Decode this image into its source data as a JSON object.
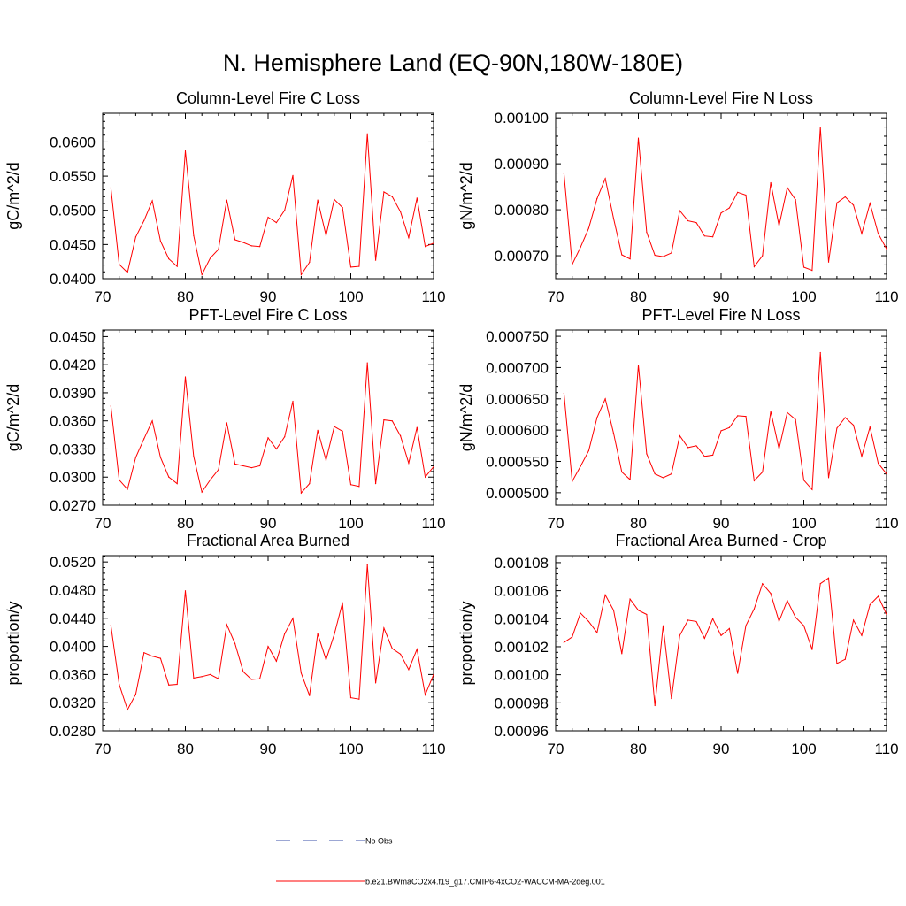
{
  "main_title": "N. Hemisphere Land (EQ-90N,180W-180E)",
  "colors": {
    "series": "#ff0000",
    "obs": "#3a4fa8",
    "axis": "#000000"
  },
  "legend": [
    {
      "label": "No Obs",
      "style": "dashed",
      "color": "#3a4fa8"
    },
    {
      "label": "b.e21.BWmaCO2x4.f19_g17.CMIP6-4xCO2-WACCM-MA-2deg.001",
      "style": "solid",
      "color": "#ff0000"
    }
  ],
  "chart_data": [
    {
      "type": "line",
      "title": "Column-Level Fire C Loss",
      "xlabel": "",
      "ylabel": "gC/m^2/d",
      "xlim": [
        70,
        110
      ],
      "ylim": [
        0.04,
        0.0642
      ],
      "xticks": [
        70,
        80,
        90,
        100,
        110
      ],
      "xtick_labels": [
        "70",
        "80",
        "90",
        "100",
        "110"
      ],
      "yticks": [
        0.04,
        0.045,
        0.05,
        0.055,
        0.06
      ],
      "ytick_labels": [
        "0.0400",
        "0.0450",
        "0.0500",
        "0.0550",
        "0.0600"
      ],
      "series": [
        {
          "name": "b.e21.BWmaCO2x4.f19_g17.CMIP6-4xCO2-WACCM-MA-2deg.001",
          "x": [
            71,
            72,
            73,
            74,
            75,
            76,
            77,
            78,
            79,
            80,
            81,
            82,
            83,
            84,
            85,
            86,
            87,
            88,
            89,
            90,
            91,
            92,
            93,
            94,
            95,
            96,
            97,
            98,
            99,
            100,
            101,
            102,
            103,
            104,
            105,
            106,
            107,
            108,
            109,
            110
          ],
          "y": [
            0.0533,
            0.0421,
            0.0409,
            0.0461,
            0.0485,
            0.0514,
            0.0455,
            0.0429,
            0.0418,
            0.0587,
            0.0463,
            0.0406,
            0.043,
            0.0443,
            0.0515,
            0.0457,
            0.0453,
            0.0448,
            0.0447,
            0.049,
            0.0482,
            0.05,
            0.0551,
            0.0406,
            0.0424,
            0.0515,
            0.0463,
            0.0516,
            0.0504,
            0.0417,
            0.0418,
            0.0612,
            0.0427,
            0.0527,
            0.052,
            0.0498,
            0.046,
            0.0518,
            0.0447,
            0.0452
          ]
        }
      ]
    },
    {
      "type": "line",
      "title": "Column-Level Fire N Loss",
      "xlabel": "",
      "ylabel": "gN/m^2/d",
      "xlim": [
        70,
        110
      ],
      "ylim": [
        0.00065,
        0.00101
      ],
      "xticks": [
        70,
        80,
        90,
        100,
        110
      ],
      "xtick_labels": [
        "70",
        "80",
        "90",
        "100",
        "110"
      ],
      "yticks": [
        0.0007,
        0.0008,
        0.0009,
        0.001
      ],
      "ytick_labels": [
        "0.00070",
        "0.00080",
        "0.00090",
        "0.00100"
      ],
      "series": [
        {
          "name": "b.e21.BWmaCO2x4.f19_g17.CMIP6-4xCO2-WACCM-MA-2deg.001",
          "x": [
            71,
            72,
            73,
            74,
            75,
            76,
            77,
            78,
            79,
            80,
            81,
            82,
            83,
            84,
            85,
            86,
            87,
            88,
            89,
            90,
            91,
            92,
            93,
            94,
            95,
            96,
            97,
            98,
            99,
            100,
            101,
            102,
            103,
            104,
            105,
            106,
            107,
            108,
            109,
            110
          ],
          "y": [
            0.000879,
            0.000681,
            0.000718,
            0.00076,
            0.000824,
            0.000868,
            0.000781,
            0.000702,
            0.000693,
            0.000956,
            0.000751,
            0.000701,
            0.000698,
            0.000706,
            0.000798,
            0.000776,
            0.000772,
            0.000743,
            0.000741,
            0.000793,
            0.000804,
            0.000838,
            0.000832,
            0.000676,
            0.0007,
            0.000859,
            0.000765,
            0.000848,
            0.000822,
            0.000675,
            0.000668,
            0.00098,
            0.000686,
            0.000815,
            0.000828,
            0.00081,
            0.000748,
            0.000814,
            0.000748,
            0.000715
          ]
        }
      ]
    },
    {
      "type": "line",
      "title": "PFT-Level Fire C Loss",
      "xlabel": "",
      "ylabel": "gC/m^2/d",
      "xlim": [
        70,
        110
      ],
      "ylim": [
        0.027,
        0.0457
      ],
      "xticks": [
        70,
        80,
        90,
        100,
        110
      ],
      "xtick_labels": [
        "70",
        "80",
        "90",
        "100",
        "110"
      ],
      "yticks": [
        0.027,
        0.03,
        0.033,
        0.036,
        0.039,
        0.042,
        0.045
      ],
      "ytick_labels": [
        "0.0270",
        "0.0300",
        "0.0330",
        "0.0360",
        "0.0390",
        "0.0420",
        "0.0450"
      ],
      "series": [
        {
          "name": "b.e21.BWmaCO2x4.f19_g17.CMIP6-4xCO2-WACCM-MA-2deg.001",
          "x": [
            71,
            72,
            73,
            74,
            75,
            76,
            77,
            78,
            79,
            80,
            81,
            82,
            83,
            84,
            85,
            86,
            87,
            88,
            89,
            90,
            91,
            92,
            93,
            94,
            95,
            96,
            97,
            98,
            99,
            100,
            101,
            102,
            103,
            104,
            105,
            106,
            107,
            108,
            109,
            110
          ],
          "y": [
            0.0376,
            0.0297,
            0.0287,
            0.0321,
            0.0341,
            0.036,
            0.0321,
            0.03,
            0.0293,
            0.0407,
            0.0322,
            0.0284,
            0.0297,
            0.0308,
            0.0358,
            0.0314,
            0.0312,
            0.031,
            0.0312,
            0.0342,
            0.033,
            0.0343,
            0.0381,
            0.0283,
            0.0293,
            0.035,
            0.0318,
            0.0354,
            0.0349,
            0.0292,
            0.029,
            0.0422,
            0.0293,
            0.0361,
            0.036,
            0.0344,
            0.0315,
            0.0353,
            0.03,
            0.0311
          ]
        }
      ]
    },
    {
      "type": "line",
      "title": "PFT-Level Fire N Loss",
      "xlabel": "",
      "ylabel": "gN/m^2/d",
      "xlim": [
        70,
        110
      ],
      "ylim": [
        0.00048,
        0.00076
      ],
      "xticks": [
        70,
        80,
        90,
        100,
        110
      ],
      "xtick_labels": [
        "70",
        "80",
        "90",
        "100",
        "110"
      ],
      "yticks": [
        0.0005,
        0.00055,
        0.0006,
        0.00065,
        0.0007,
        0.00075
      ],
      "ytick_labels": [
        "0.000500",
        "0.000550",
        "0.000600",
        "0.000650",
        "0.000700",
        "0.000750"
      ],
      "series": [
        {
          "name": "b.e21.BWmaCO2x4.f19_g17.CMIP6-4xCO2-WACCM-MA-2deg.001",
          "x": [
            71,
            72,
            73,
            74,
            75,
            76,
            77,
            78,
            79,
            80,
            81,
            82,
            83,
            84,
            85,
            86,
            87,
            88,
            89,
            90,
            91,
            92,
            93,
            94,
            95,
            96,
            97,
            98,
            99,
            100,
            101,
            102,
            103,
            104,
            105,
            106,
            107,
            108,
            109,
            110
          ],
          "y": [
            0.000659,
            0.000518,
            0.000542,
            0.000567,
            0.00062,
            0.00065,
            0.000595,
            0.000533,
            0.000521,
            0.000704,
            0.000562,
            0.00053,
            0.000524,
            0.00053,
            0.000591,
            0.000572,
            0.000575,
            0.000558,
            0.00056,
            0.000599,
            0.000604,
            0.000623,
            0.000622,
            0.000519,
            0.000533,
            0.00063,
            0.00057,
            0.000628,
            0.000617,
            0.00052,
            0.000505,
            0.000724,
            0.000524,
            0.000603,
            0.00062,
            0.000608,
            0.000558,
            0.000605,
            0.000547,
            0.00053
          ]
        }
      ]
    },
    {
      "type": "line",
      "title": "Fractional Area Burned",
      "xlabel": "",
      "ylabel": "proportion/y",
      "xlim": [
        70,
        110
      ],
      "ylim": [
        0.028,
        0.0529
      ],
      "xticks": [
        70,
        80,
        90,
        100,
        110
      ],
      "xtick_labels": [
        "70",
        "80",
        "90",
        "100",
        "110"
      ],
      "yticks": [
        0.028,
        0.032,
        0.036,
        0.04,
        0.044,
        0.048,
        0.052
      ],
      "ytick_labels": [
        "0.0280",
        "0.0320",
        "0.0360",
        "0.0400",
        "0.0440",
        "0.0480",
        "0.0520"
      ],
      "series": [
        {
          "name": "b.e21.BWmaCO2x4.f19_g17.CMIP6-4xCO2-WACCM-MA-2deg.001",
          "x": [
            71,
            72,
            73,
            74,
            75,
            76,
            77,
            78,
            79,
            80,
            81,
            82,
            83,
            84,
            85,
            86,
            87,
            88,
            89,
            90,
            91,
            92,
            93,
            94,
            95,
            96,
            97,
            98,
            99,
            100,
            101,
            102,
            103,
            104,
            105,
            106,
            107,
            108,
            109,
            110
          ],
          "y": [
            0.043,
            0.0346,
            0.031,
            0.0332,
            0.0391,
            0.0386,
            0.0383,
            0.0345,
            0.0346,
            0.0479,
            0.0355,
            0.0357,
            0.036,
            0.0354,
            0.0431,
            0.0404,
            0.0364,
            0.0353,
            0.0354,
            0.04,
            0.0379,
            0.0418,
            0.044,
            0.0362,
            0.033,
            0.0418,
            0.0381,
            0.0417,
            0.0462,
            0.0327,
            0.0325,
            0.0516,
            0.0348,
            0.0426,
            0.0397,
            0.0389,
            0.0367,
            0.0396,
            0.0331,
            0.036
          ]
        }
      ]
    },
    {
      "type": "line",
      "title": "Fractional Area Burned - Crop",
      "xlabel": "",
      "ylabel": "proportion/y",
      "xlim": [
        70,
        110
      ],
      "ylim": [
        0.00096,
        0.001085
      ],
      "xticks": [
        70,
        80,
        90,
        100,
        110
      ],
      "xtick_labels": [
        "70",
        "80",
        "90",
        "100",
        "110"
      ],
      "yticks": [
        0.00096,
        0.00098,
        0.001,
        0.00102,
        0.00104,
        0.00106,
        0.00108
      ],
      "ytick_labels": [
        "0.00096",
        "0.00098",
        "0.00100",
        "0.00102",
        "0.00104",
        "0.00106",
        "0.00108"
      ],
      "series": [
        {
          "name": "b.e21.BWmaCO2x4.f19_g17.CMIP6-4xCO2-WACCM-MA-2deg.001",
          "x": [
            71,
            72,
            73,
            74,
            75,
            76,
            77,
            78,
            79,
            80,
            81,
            82,
            83,
            84,
            85,
            86,
            87,
            88,
            89,
            90,
            91,
            92,
            93,
            94,
            95,
            96,
            97,
            98,
            99,
            100,
            101,
            102,
            103,
            104,
            105,
            106,
            107,
            108,
            109,
            110
          ],
          "y": [
            0.001023,
            0.001027,
            0.001044,
            0.001038,
            0.00103,
            0.001057,
            0.001046,
            0.001015,
            0.001054,
            0.001046,
            0.001043,
            0.000978,
            0.001035,
            0.000983,
            0.001028,
            0.001039,
            0.001038,
            0.001026,
            0.00104,
            0.001028,
            0.001033,
            0.001001,
            0.001035,
            0.001047,
            0.001065,
            0.001058,
            0.001038,
            0.001053,
            0.001041,
            0.001035,
            0.001018,
            0.001065,
            0.001069,
            0.001008,
            0.001011,
            0.001039,
            0.001028,
            0.00105,
            0.001056,
            0.001043
          ]
        }
      ]
    }
  ]
}
